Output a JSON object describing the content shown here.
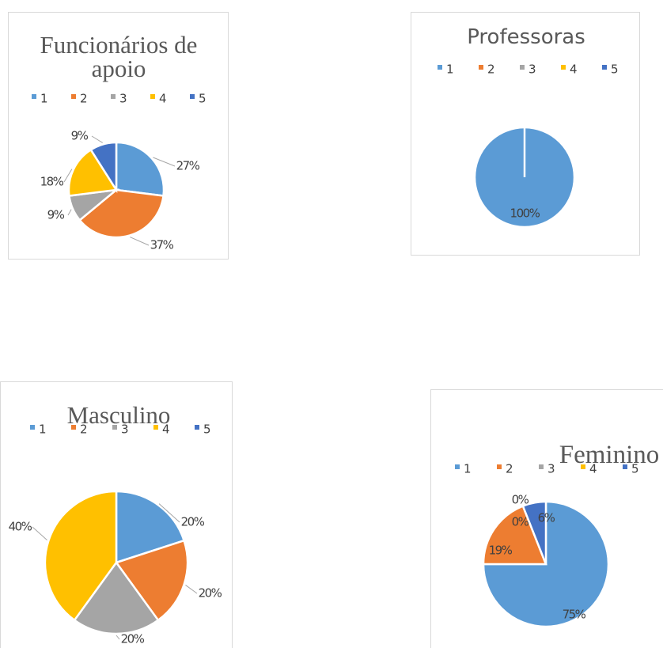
{
  "chart_data": [
    {
      "type": "pie",
      "title": "Funcionários de apoio",
      "categories": [
        "1",
        "2",
        "3",
        "4",
        "5"
      ],
      "colors": [
        "#5b9bd5",
        "#ed7d31",
        "#a5a5a5",
        "#ffc000",
        "#4472c4"
      ],
      "values": [
        27,
        37,
        9,
        18,
        9
      ],
      "value_labels": [
        "27%",
        "37%",
        "9%",
        "18%",
        "9%"
      ]
    },
    {
      "type": "pie",
      "title": "Professoras",
      "categories": [
        "1",
        "2",
        "3",
        "4",
        "5"
      ],
      "colors": [
        "#5b9bd5",
        "#ed7d31",
        "#a5a5a5",
        "#ffc000",
        "#4472c4"
      ],
      "values": [
        100,
        0,
        0,
        0,
        0
      ],
      "value_labels": [
        "100%",
        null,
        null,
        null,
        null
      ]
    },
    {
      "type": "pie",
      "title": "Masculino",
      "categories": [
        "1",
        "2",
        "3",
        "4",
        "5"
      ],
      "colors": [
        "#5b9bd5",
        "#ed7d31",
        "#a5a5a5",
        "#ffc000",
        "#4472c4"
      ],
      "values": [
        20,
        20,
        20,
        40,
        0
      ],
      "value_labels": [
        "20%",
        "20%",
        "20%",
        "40%",
        null
      ]
    },
    {
      "type": "pie",
      "title": "Feminino",
      "categories": [
        "1",
        "2",
        "3",
        "4",
        "5"
      ],
      "colors": [
        "#5b9bd5",
        "#ed7d31",
        "#a5a5a5",
        "#ffc000",
        "#4472c4"
      ],
      "values": [
        75,
        19,
        0,
        0,
        6
      ],
      "value_labels": [
        "75%",
        "19%",
        "0%",
        "0%",
        "6%"
      ]
    }
  ]
}
